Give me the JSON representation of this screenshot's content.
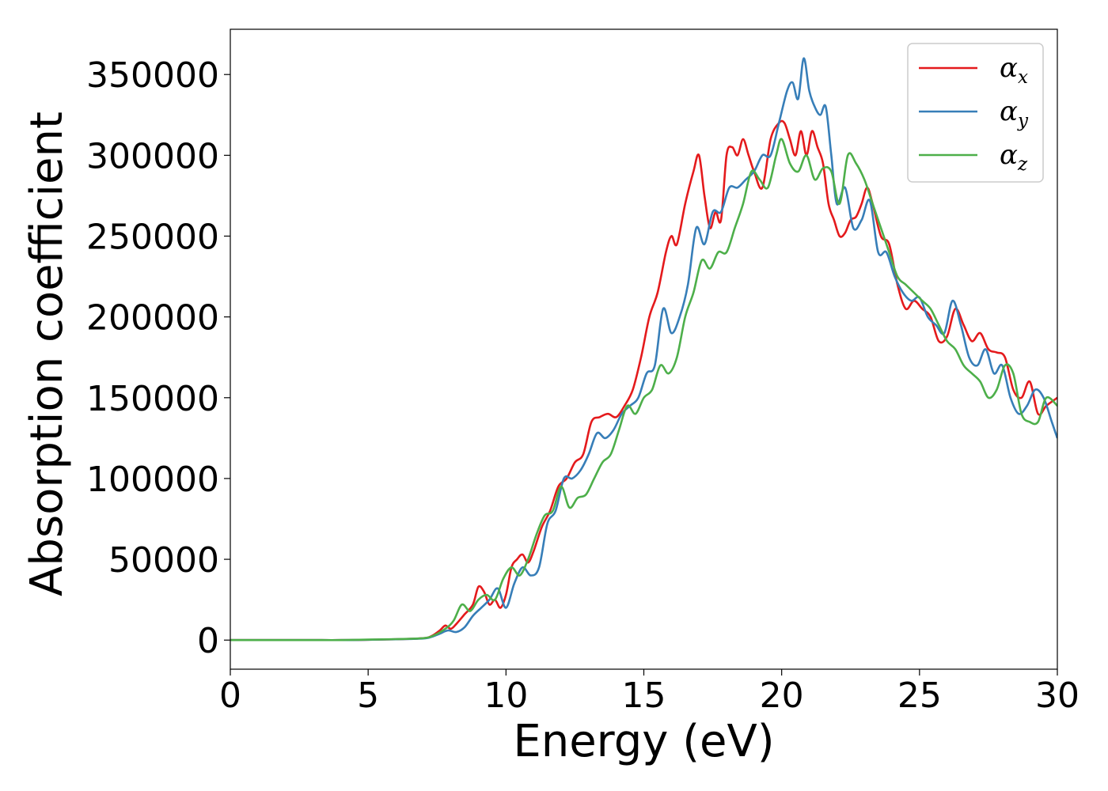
{
  "chart_data": {
    "type": "line",
    "title": "",
    "xlabel": "Energy (eV)",
    "ylabel": "Absorption coefficient",
    "xlim": [
      0,
      30
    ],
    "ylim": [
      -18000,
      378000
    ],
    "xticks": [
      0,
      5,
      10,
      15,
      20,
      25,
      30
    ],
    "yticks": [
      0,
      50000,
      100000,
      150000,
      200000,
      250000,
      300000,
      350000
    ],
    "grid": false,
    "legend_position": "top-right",
    "series": [
      {
        "name": "α",
        "subscript": "x",
        "color": "#e41a1c",
        "x": [
          0,
          1,
          2,
          3,
          4,
          5,
          6,
          7,
          7.3,
          7.6,
          7.8,
          8.0,
          8.2,
          8.5,
          8.8,
          9.0,
          9.2,
          9.4,
          9.6,
          9.8,
          10.0,
          10.2,
          10.4,
          10.6,
          10.8,
          11.0,
          11.3,
          11.6,
          11.9,
          12.2,
          12.5,
          12.8,
          13.1,
          13.4,
          13.7,
          14.0,
          14.3,
          14.6,
          14.9,
          15.2,
          15.5,
          15.8,
          16.0,
          16.2,
          16.5,
          16.8,
          17.0,
          17.2,
          17.4,
          17.6,
          17.8,
          18.0,
          18.2,
          18.4,
          18.6,
          18.8,
          19.0,
          19.3,
          19.6,
          19.9,
          20.1,
          20.3,
          20.5,
          20.7,
          20.9,
          21.1,
          21.3,
          21.5,
          21.7,
          21.9,
          22.1,
          22.3,
          22.5,
          22.7,
          22.9,
          23.1,
          23.3,
          23.6,
          23.9,
          24.2,
          24.5,
          24.8,
          25.1,
          25.4,
          25.7,
          26.0,
          26.3,
          26.6,
          26.9,
          27.2,
          27.5,
          27.8,
          28.1,
          28.4,
          28.7,
          29.0,
          29.3,
          29.6,
          30.0
        ],
        "values": [
          0,
          0,
          0,
          0,
          0,
          200,
          500,
          1200,
          2500,
          6000,
          9000,
          7000,
          10000,
          16000,
          22000,
          33000,
          30000,
          22000,
          25000,
          20000,
          28000,
          45000,
          50000,
          53000,
          48000,
          55000,
          70000,
          80000,
          95000,
          100000,
          110000,
          115000,
          135000,
          138000,
          140000,
          138000,
          145000,
          155000,
          175000,
          200000,
          215000,
          240000,
          250000,
          245000,
          270000,
          290000,
          300000,
          275000,
          255000,
          265000,
          260000,
          300000,
          305000,
          300000,
          310000,
          300000,
          290000,
          280000,
          310000,
          320000,
          320000,
          310000,
          300000,
          315000,
          300000,
          315000,
          305000,
          295000,
          270000,
          260000,
          250000,
          252000,
          260000,
          262000,
          270000,
          280000,
          270000,
          250000,
          245000,
          220000,
          205000,
          210000,
          205000,
          200000,
          185000,
          188000,
          205000,
          195000,
          185000,
          190000,
          180000,
          178000,
          175000,
          155000,
          150000,
          160000,
          140000,
          145000,
          150000
        ]
      },
      {
        "name": "α",
        "subscript": "y",
        "color": "#377eb8",
        "x": [
          0,
          1,
          2,
          3,
          4,
          5,
          6,
          7,
          7.3,
          7.6,
          7.9,
          8.2,
          8.5,
          8.8,
          9.1,
          9.4,
          9.7,
          10.0,
          10.3,
          10.6,
          10.9,
          11.2,
          11.5,
          11.8,
          12.1,
          12.4,
          12.7,
          13.0,
          13.3,
          13.6,
          13.9,
          14.2,
          14.5,
          14.8,
          15.1,
          15.4,
          15.7,
          16.0,
          16.3,
          16.6,
          16.9,
          17.2,
          17.5,
          17.8,
          18.1,
          18.4,
          18.7,
          19.0,
          19.3,
          19.6,
          19.9,
          20.2,
          20.4,
          20.6,
          20.8,
          21.0,
          21.2,
          21.4,
          21.6,
          21.8,
          22.0,
          22.3,
          22.6,
          22.9,
          23.2,
          23.5,
          23.8,
          24.1,
          24.4,
          24.7,
          25.0,
          25.3,
          25.6,
          25.9,
          26.2,
          26.5,
          26.8,
          27.1,
          27.4,
          27.7,
          28.0,
          28.3,
          28.6,
          28.9,
          29.2,
          29.5,
          29.8,
          30.0
        ],
        "values": [
          0,
          0,
          0,
          0,
          0,
          200,
          500,
          1000,
          2000,
          4000,
          6000,
          5000,
          8000,
          15000,
          20000,
          25000,
          32000,
          20000,
          35000,
          45000,
          40000,
          45000,
          72000,
          80000,
          100000,
          100000,
          105000,
          115000,
          128000,
          125000,
          130000,
          140000,
          145000,
          150000,
          165000,
          170000,
          205000,
          190000,
          200000,
          220000,
          255000,
          245000,
          265000,
          265000,
          280000,
          280000,
          285000,
          290000,
          300000,
          300000,
          320000,
          340000,
          345000,
          335000,
          360000,
          340000,
          330000,
          325000,
          330000,
          300000,
          270000,
          280000,
          255000,
          260000,
          272000,
          240000,
          240000,
          225000,
          215000,
          210000,
          212000,
          200000,
          195000,
          190000,
          210000,
          195000,
          175000,
          170000,
          180000,
          165000,
          170000,
          150000,
          140000,
          145000,
          155000,
          150000,
          135000,
          125000
        ]
      },
      {
        "name": "α",
        "subscript": "z",
        "color": "#4daf4a",
        "x": [
          0,
          1,
          2,
          3,
          4,
          5,
          6,
          7,
          7.4,
          7.8,
          8.1,
          8.4,
          8.7,
          9.0,
          9.3,
          9.6,
          9.9,
          10.2,
          10.5,
          10.8,
          11.1,
          11.4,
          11.7,
          12.0,
          12.3,
          12.6,
          12.9,
          13.2,
          13.5,
          13.8,
          14.1,
          14.4,
          14.7,
          15.0,
          15.3,
          15.6,
          15.9,
          16.2,
          16.5,
          16.8,
          17.1,
          17.4,
          17.7,
          18.0,
          18.3,
          18.6,
          18.9,
          19.2,
          19.5,
          19.8,
          20.0,
          20.3,
          20.6,
          20.9,
          21.2,
          21.5,
          21.8,
          22.1,
          22.4,
          22.7,
          23.0,
          23.3,
          23.6,
          23.9,
          24.2,
          24.5,
          24.8,
          25.1,
          25.4,
          25.7,
          26.0,
          26.3,
          26.6,
          26.9,
          27.2,
          27.5,
          27.8,
          28.1,
          28.4,
          28.7,
          29.0,
          29.3,
          29.6,
          30.0
        ],
        "values": [
          0,
          0,
          0,
          0,
          0,
          300,
          600,
          1200,
          3000,
          7000,
          12000,
          22000,
          18000,
          25000,
          28000,
          25000,
          38000,
          45000,
          40000,
          50000,
          65000,
          77000,
          80000,
          95000,
          82000,
          88000,
          90000,
          100000,
          110000,
          115000,
          130000,
          145000,
          140000,
          150000,
          155000,
          170000,
          165000,
          175000,
          200000,
          215000,
          235000,
          230000,
          240000,
          240000,
          255000,
          270000,
          290000,
          285000,
          280000,
          300000,
          310000,
          295000,
          290000,
          300000,
          285000,
          292000,
          290000,
          270000,
          300000,
          295000,
          285000,
          270000,
          255000,
          240000,
          225000,
          220000,
          215000,
          210000,
          205000,
          195000,
          185000,
          180000,
          170000,
          165000,
          160000,
          150000,
          155000,
          170000,
          165000,
          140000,
          135000,
          135000,
          150000,
          145000
        ]
      }
    ]
  }
}
